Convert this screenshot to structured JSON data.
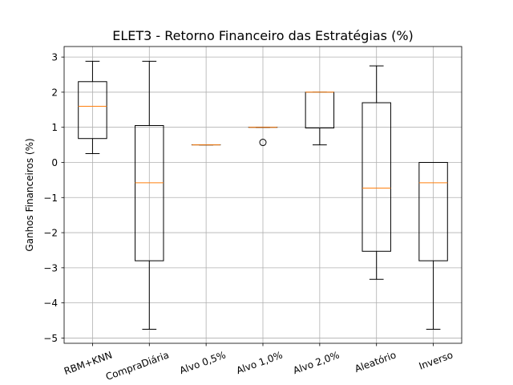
{
  "chart_data": {
    "type": "boxplot",
    "title": "ELET3 - Retorno Financeiro das Estratégias (%)",
    "xlabel": "",
    "ylabel": "Ganhos Financeiros (%)",
    "categories": [
      "RBM+KNN",
      "CompraDiária",
      "Alvo 0,5%",
      "Alvo 1,0%",
      "Alvo 2,0%",
      "Aleatório",
      "Inverso"
    ],
    "ylim": [
      -5.15,
      3.3
    ],
    "yticks": [
      3,
      2,
      1,
      0,
      -1,
      -2,
      -3,
      -4,
      -5
    ],
    "ytick_labels": [
      "3",
      "2",
      "1",
      "0",
      "−1",
      "−2",
      "−3",
      "−4",
      "−5"
    ],
    "grid": true,
    "boxes": [
      {
        "whisker_low": 0.25,
        "q1": 0.68,
        "median": 1.6,
        "q3": 2.3,
        "whisker_high": 2.88,
        "outliers": []
      },
      {
        "whisker_low": -4.75,
        "q1": -2.8,
        "median": -0.58,
        "q3": 1.05,
        "whisker_high": 2.88,
        "outliers": []
      },
      {
        "whisker_low": 0.5,
        "q1": 0.5,
        "median": 0.5,
        "q3": 0.5,
        "whisker_high": 0.5,
        "outliers": []
      },
      {
        "whisker_low": 1.0,
        "q1": 1.0,
        "median": 1.0,
        "q3": 1.0,
        "whisker_high": 1.0,
        "outliers": [
          0.57
        ]
      },
      {
        "whisker_low": 0.5,
        "q1": 0.98,
        "median": 2.0,
        "q3": 2.0,
        "whisker_high": 2.0,
        "outliers": []
      },
      {
        "whisker_low": -3.33,
        "q1": -2.53,
        "median": -0.73,
        "q3": 1.7,
        "whisker_high": 2.75,
        "outliers": []
      },
      {
        "whisker_low": -4.75,
        "q1": -2.8,
        "median": -0.58,
        "q3": 0.0,
        "whisker_high": 0.0,
        "outliers": []
      }
    ],
    "colors": {
      "box": "#000000",
      "median": "#ff7f0e",
      "grid": "#b0b0b0"
    }
  }
}
